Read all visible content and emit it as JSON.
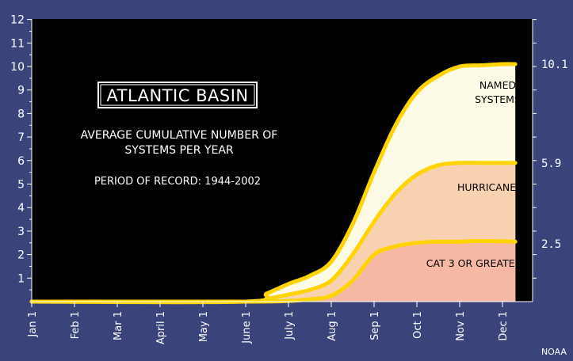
{
  "chart_data": {
    "type": "area",
    "title": "ATLANTIC BASIN",
    "subtitle_lines": [
      "AVERAGE CUMULATIVE NUMBER OF",
      "SYSTEMS PER YEAR"
    ],
    "period": "PERIOD OF RECORD: 1944-2002",
    "credit": "NOAA",
    "x_ticks": [
      "Jan 1",
      "Feb 1",
      "Mar 1",
      "April 1",
      "May 1",
      "June 1",
      "July 1",
      "Aug 1",
      "Sep 1",
      "Oct 1",
      "Nov 1",
      "Dec 1"
    ],
    "y_ticks": [
      1,
      2,
      3,
      4,
      5,
      6,
      7,
      8,
      9,
      10,
      11,
      12
    ],
    "ylim": [
      0,
      12
    ],
    "series": [
      {
        "name": "NAMED SYSTEMS",
        "label_lines": [
          "NAMED",
          "SYSTEMS"
        ],
        "end_value": "10.1",
        "fill": "#fdfbe6",
        "points": [
          [
            0,
            0
          ],
          [
            5,
            0
          ],
          [
            5.5,
            0.35
          ],
          [
            6,
            0.75
          ],
          [
            6.5,
            1.1
          ],
          [
            7,
            1.7
          ],
          [
            7.5,
            3.3
          ],
          [
            8,
            5.5
          ],
          [
            8.5,
            7.5
          ],
          [
            9,
            8.9
          ],
          [
            9.5,
            9.6
          ],
          [
            10,
            10.0
          ],
          [
            10.5,
            10.05
          ],
          [
            11,
            10.1
          ],
          [
            11.3,
            10.1
          ]
        ]
      },
      {
        "name": "HURRICANES",
        "label_lines": [
          "HURRICANES"
        ],
        "end_value": "5.9",
        "fill": "#f8d2b0",
        "points": [
          [
            0,
            0
          ],
          [
            5,
            0
          ],
          [
            5.5,
            0.12
          ],
          [
            6,
            0.3
          ],
          [
            6.5,
            0.5
          ],
          [
            7,
            0.9
          ],
          [
            7.5,
            2.0
          ],
          [
            8,
            3.4
          ],
          [
            8.5,
            4.6
          ],
          [
            9,
            5.4
          ],
          [
            9.5,
            5.8
          ],
          [
            10,
            5.9
          ],
          [
            10.5,
            5.9
          ],
          [
            11.3,
            5.9
          ]
        ]
      },
      {
        "name": "CAT 3 OR GREATER",
        "label_lines": [
          "CAT 3 OR GREATER"
        ],
        "end_value": "2.5",
        "fill": "#f4b8a4",
        "points": [
          [
            0,
            0
          ],
          [
            5,
            0
          ],
          [
            6,
            0.03
          ],
          [
            6.5,
            0.1
          ],
          [
            7,
            0.25
          ],
          [
            7.5,
            0.9
          ],
          [
            8,
            2.0
          ],
          [
            8.5,
            2.35
          ],
          [
            9,
            2.5
          ],
          [
            9.5,
            2.55
          ],
          [
            10,
            2.55
          ],
          [
            10.5,
            2.58
          ],
          [
            11.3,
            2.55
          ]
        ]
      }
    ],
    "colors": {
      "plot_background": "#000000",
      "frame_background": "#3a447a",
      "line": "#ffd400",
      "text": "#ffffff"
    }
  }
}
